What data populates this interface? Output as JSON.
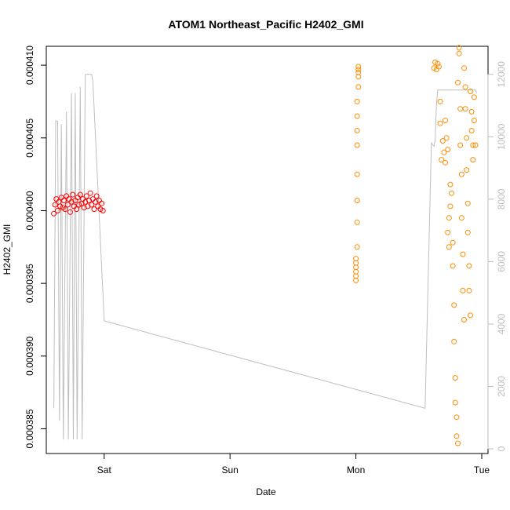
{
  "chart_data": {
    "type": "scatter",
    "title": "ATOM1 Northeast_Pacific H2402_GMI",
    "xlabel": "Date",
    "ylabel": "H2402_GMI",
    "x_ticks": [
      {
        "label": "Sat",
        "day": 1
      },
      {
        "label": "Sun",
        "day": 2
      },
      {
        "label": "Mon",
        "day": 3
      },
      {
        "label": "Tue",
        "day": 4
      }
    ],
    "xlim_days": [
      0.54,
      4.05
    ],
    "ylim": [
      0.0003833,
      0.0004113
    ],
    "y_ticks": [
      "0.000385",
      "0.000390",
      "0.000395",
      "0.000400",
      "0.000405",
      "0.000410"
    ],
    "y_tick_values": [
      0.000385,
      0.00039,
      0.000395,
      0.0004,
      0.000405,
      0.00041
    ],
    "y2lim": [
      -150,
      12900
    ],
    "y2_ticks": [
      "0",
      "2000",
      "4000",
      "6000",
      "8000",
      "10000",
      "12000"
    ],
    "y2_tick_values": [
      0,
      2000,
      4000,
      6000,
      8000,
      10000,
      12000
    ],
    "grid": false,
    "series": [
      {
        "color": "#ff0000",
        "marker": "open-circle",
        "axis": "left",
        "points": [
          [
            0.6,
            0.0003998
          ],
          [
            0.61,
            0.0004004
          ],
          [
            0.62,
            0.0004008
          ],
          [
            0.63,
            0.0004
          ],
          [
            0.64,
            0.0004006
          ],
          [
            0.65,
            0.0004003
          ],
          [
            0.66,
            0.0004009
          ],
          [
            0.67,
            0.0004002
          ],
          [
            0.68,
            0.0004007
          ],
          [
            0.69,
            0.0004001
          ],
          [
            0.7,
            0.000401
          ],
          [
            0.71,
            0.0004004
          ],
          [
            0.72,
            0.0004008
          ],
          [
            0.73,
            0.0003999
          ],
          [
            0.74,
            0.0004006
          ],
          [
            0.75,
            0.0004011
          ],
          [
            0.76,
            0.0004003
          ],
          [
            0.77,
            0.0004007
          ],
          [
            0.78,
            0.0004001
          ],
          [
            0.79,
            0.0004009
          ],
          [
            0.8,
            0.0004004
          ],
          [
            0.81,
            0.0004011
          ],
          [
            0.82,
            0.0004005
          ],
          [
            0.83,
            0.0004008
          ],
          [
            0.84,
            0.0004002
          ],
          [
            0.85,
            0.0004006
          ],
          [
            0.86,
            0.000401
          ],
          [
            0.87,
            0.0004003
          ],
          [
            0.88,
            0.0004007
          ],
          [
            0.89,
            0.0004012
          ],
          [
            0.9,
            0.0004004
          ],
          [
            0.91,
            0.0004008
          ],
          [
            0.92,
            0.0004001
          ],
          [
            0.93,
            0.0004006
          ],
          [
            0.94,
            0.000401
          ],
          [
            0.95,
            0.0004003
          ],
          [
            0.96,
            0.0004007
          ],
          [
            0.97,
            0.0004001
          ],
          [
            0.98,
            0.0004005
          ],
          [
            0.99,
            0.0004
          ]
        ]
      },
      {
        "color": "#ff8c00",
        "marker": "open-circle",
        "axis": "left",
        "points": [
          [
            3.0,
            0.0003952
          ],
          [
            3.0,
            0.0003955
          ],
          [
            3.0,
            0.0003958
          ],
          [
            3.0,
            0.0003961
          ],
          [
            3.0,
            0.0003964
          ],
          [
            3.0,
            0.0003967
          ],
          [
            3.01,
            0.0003975
          ],
          [
            3.01,
            0.0003992
          ],
          [
            3.01,
            0.0004007
          ],
          [
            3.01,
            0.0004025
          ],
          [
            3.01,
            0.0004045
          ],
          [
            3.01,
            0.0004055
          ],
          [
            3.01,
            0.0004065
          ],
          [
            3.01,
            0.0004075
          ],
          [
            3.02,
            0.0004085
          ],
          [
            3.02,
            0.0004092
          ],
          [
            3.02,
            0.0004095
          ],
          [
            3.02,
            0.0004097
          ],
          [
            3.02,
            0.0004099
          ],
          [
            3.62,
            0.0004098
          ],
          [
            3.63,
            0.0004102
          ],
          [
            3.64,
            0.0004097
          ],
          [
            3.65,
            0.0004101
          ],
          [
            3.66,
            0.0004099
          ],
          [
            3.67,
            0.0004075
          ],
          [
            3.67,
            0.000406
          ],
          [
            3.68,
            0.0004035
          ],
          [
            3.69,
            0.0004048
          ],
          [
            3.7,
            0.000404
          ],
          [
            3.71,
            0.0004062
          ],
          [
            3.71,
            0.0004033
          ],
          [
            3.72,
            0.000405
          ],
          [
            3.73,
            0.0004042
          ],
          [
            3.73,
            0.0003985
          ],
          [
            3.74,
            0.0003975
          ],
          [
            3.74,
            0.0003995
          ],
          [
            3.75,
            0.0004003
          ],
          [
            3.75,
            0.0004018
          ],
          [
            3.76,
            0.0004012
          ],
          [
            3.77,
            0.0003978
          ],
          [
            3.77,
            0.0003962
          ],
          [
            3.78,
            0.0003935
          ],
          [
            3.78,
            0.000391
          ],
          [
            3.79,
            0.0003885
          ],
          [
            3.79,
            0.0003868
          ],
          [
            3.8,
            0.0003858
          ],
          [
            3.8,
            0.0003845
          ],
          [
            3.81,
            0.000384
          ],
          [
            3.81,
            0.0004088
          ],
          [
            3.82,
            0.0004108
          ],
          [
            3.82,
            0.0004112
          ],
          [
            3.83,
            0.000407
          ],
          [
            3.83,
            0.0004045
          ],
          [
            3.84,
            0.0004025
          ],
          [
            3.84,
            0.0003995
          ],
          [
            3.85,
            0.000397
          ],
          [
            3.85,
            0.0003945
          ],
          [
            3.86,
            0.0003925
          ],
          [
            3.86,
            0.0004098
          ],
          [
            3.87,
            0.0004085
          ],
          [
            3.87,
            0.000407
          ],
          [
            3.88,
            0.000405
          ],
          [
            3.88,
            0.0004028
          ],
          [
            3.89,
            0.0004005
          ],
          [
            3.89,
            0.0003985
          ],
          [
            3.9,
            0.0003962
          ],
          [
            3.9,
            0.0003945
          ],
          [
            3.91,
            0.0003928
          ],
          [
            3.91,
            0.0004082
          ],
          [
            3.92,
            0.0004068
          ],
          [
            3.92,
            0.0004055
          ],
          [
            3.93,
            0.0004045
          ],
          [
            3.93,
            0.0004035
          ],
          [
            3.94,
            0.0004078
          ],
          [
            3.94,
            0.0004062
          ],
          [
            3.95,
            0.0004045
          ]
        ]
      }
    ],
    "line_series": [
      {
        "color": "#bebebe",
        "axis": "right",
        "points": [
          [
            0.6,
            1300
          ],
          [
            0.615,
            10500
          ],
          [
            0.63,
            10500
          ],
          [
            0.645,
            900
          ],
          [
            0.66,
            10400
          ],
          [
            0.675,
            300
          ],
          [
            0.7,
            10800
          ],
          [
            0.715,
            300
          ],
          [
            0.74,
            11400
          ],
          [
            0.755,
            300
          ],
          [
            0.77,
            11400
          ],
          [
            0.785,
            300
          ],
          [
            0.81,
            11600
          ],
          [
            0.825,
            300
          ],
          [
            0.85,
            12000
          ],
          [
            0.875,
            12000
          ],
          [
            0.9,
            12000
          ],
          [
            0.91,
            11800
          ],
          [
            1.0,
            4100
          ],
          [
            3.55,
            1300
          ],
          [
            3.6,
            9800
          ],
          [
            3.62,
            9700
          ],
          [
            3.63,
            9900
          ],
          [
            3.64,
            11000
          ],
          [
            3.65,
            11500
          ],
          [
            3.7,
            11500
          ],
          [
            3.75,
            11500
          ],
          [
            3.8,
            11500
          ],
          [
            3.85,
            11500
          ],
          [
            3.9,
            11500
          ],
          [
            3.95,
            11500
          ],
          [
            3.96,
            11400
          ]
        ]
      }
    ]
  }
}
